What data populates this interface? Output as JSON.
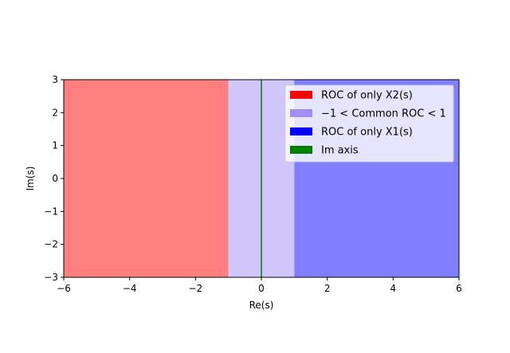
{
  "chart_data": {
    "type": "area",
    "title": "",
    "xlabel": "Re(s)",
    "ylabel": "Im(s)",
    "xlim": [
      -6,
      6
    ],
    "ylim": [
      -3,
      3
    ],
    "xticks": [
      -6,
      -4,
      -2,
      0,
      2,
      4,
      6
    ],
    "yticks": [
      -3,
      -2,
      -1,
      0,
      1,
      2,
      3
    ],
    "xtick_labels": [
      "−6",
      "−4",
      "−2",
      "0",
      "2",
      "4",
      "6"
    ],
    "ytick_labels": [
      "−3",
      "−2",
      "−1",
      "0",
      "1",
      "2",
      "3"
    ],
    "grid": false,
    "legend_position": "upper right",
    "regions": [
      {
        "name": "ROC of only X2(s)",
        "x_range": [
          -6,
          -1
        ],
        "color": "#ff0000",
        "alpha": 0.5
      },
      {
        "name": "−1 < Common ROC < 1",
        "x_range": [
          -1,
          1
        ],
        "color": "#a38df9",
        "alpha": 0.5
      },
      {
        "name": "ROC of only X1(s)",
        "x_range": [
          1,
          6
        ],
        "color": "#0000ff",
        "alpha": 0.5
      }
    ],
    "lines": [
      {
        "name": "Im axis",
        "x": 0,
        "color": "#008000"
      }
    ],
    "legend": [
      {
        "label": "ROC of only X2(s)",
        "color": "#ff0000"
      },
      {
        "label": "−1 < Common ROC < 1",
        "color": "#a38df9"
      },
      {
        "label": "ROC of only X1(s)",
        "color": "#0000ff"
      },
      {
        "label": "Im axis",
        "color": "#008000"
      }
    ]
  }
}
